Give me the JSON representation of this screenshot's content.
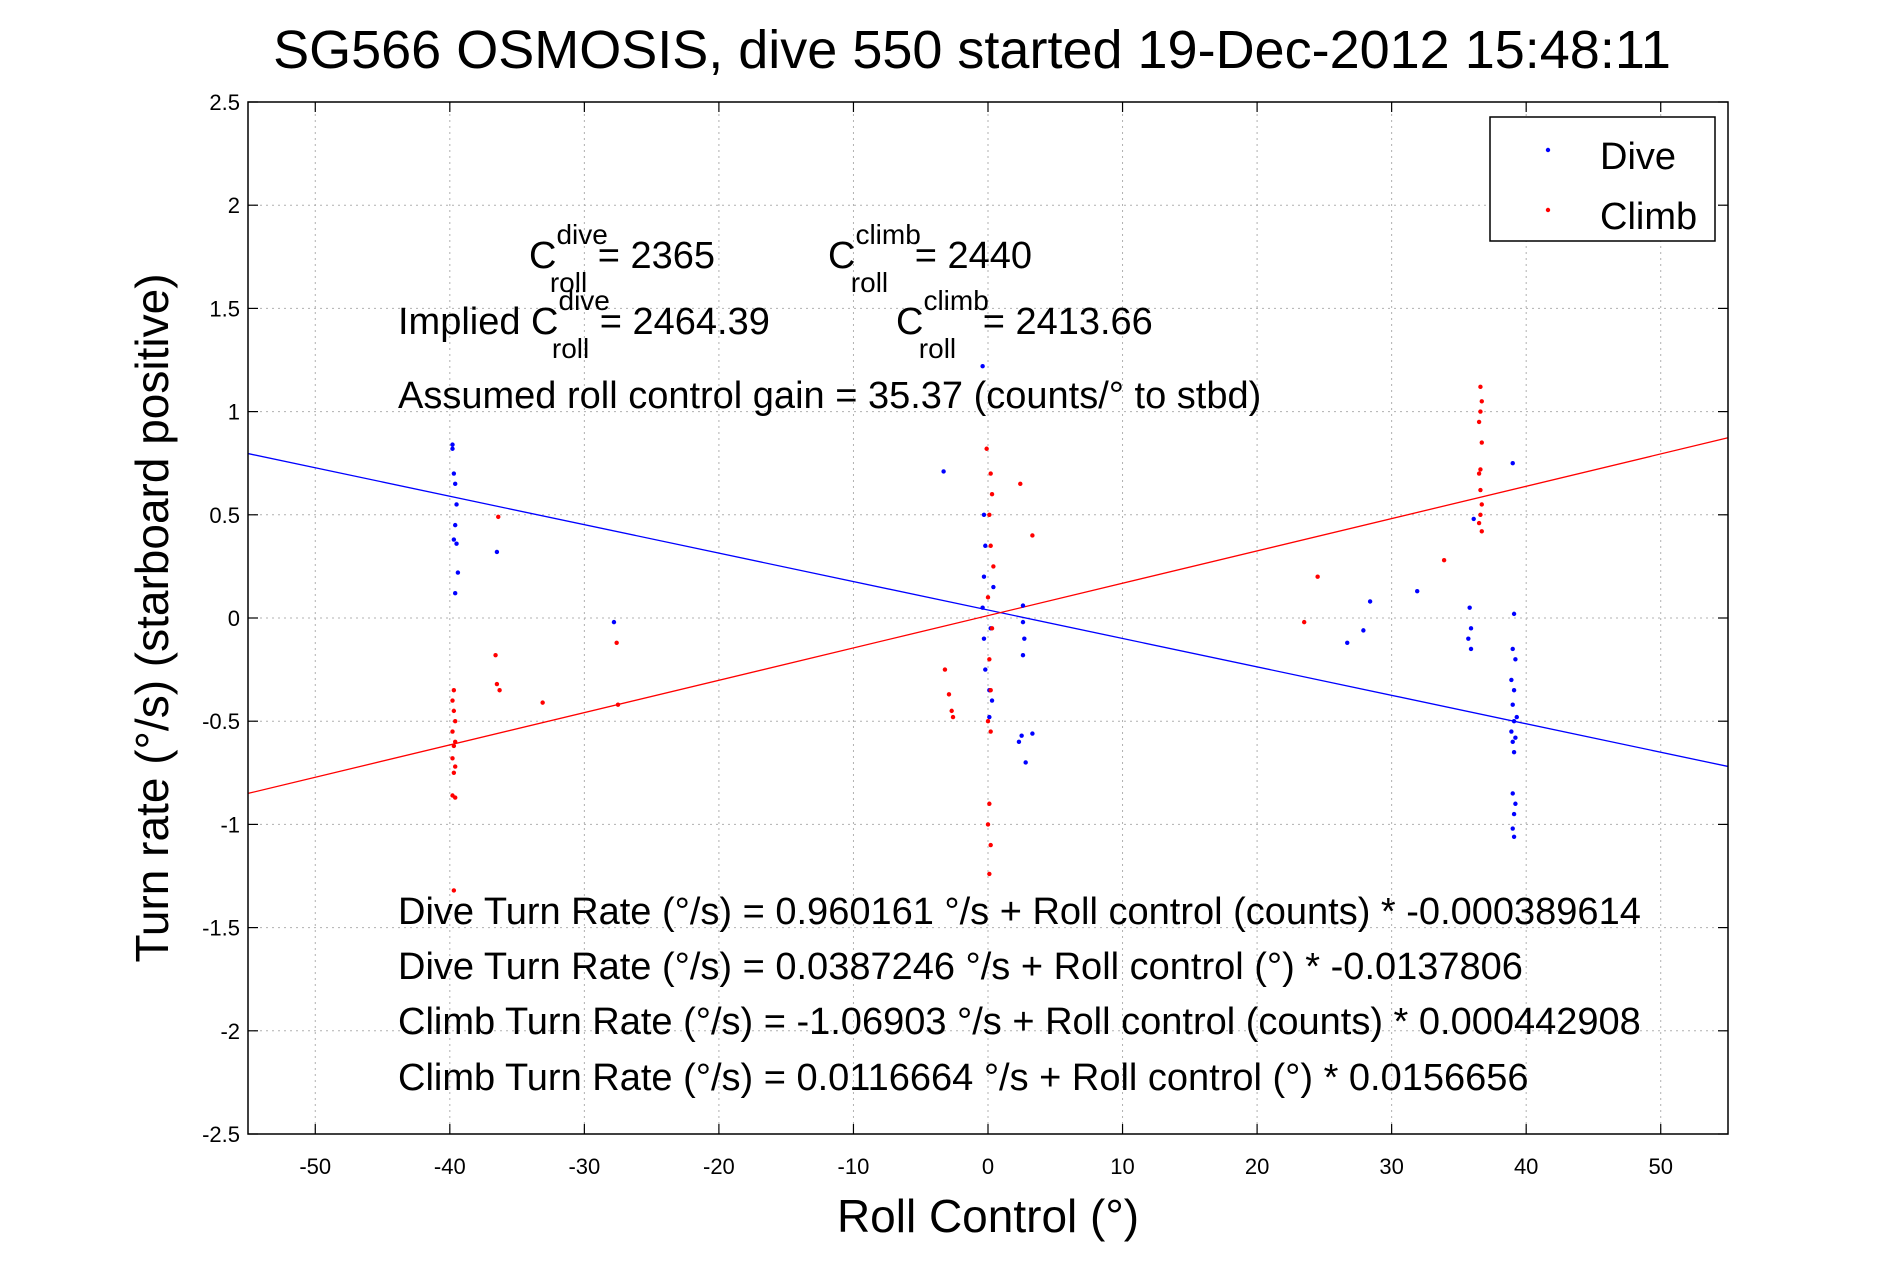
{
  "chart_data": {
    "type": "scatter",
    "title": "SG566 OSMOSIS, dive 550 started 19-Dec-2012 15:48:11",
    "xlabel": "Roll Control (°)",
    "ylabel": "Turn rate (°/s) (starboard positive)",
    "xlim": [
      -55,
      55
    ],
    "ylim": [
      -2.5,
      2.5
    ],
    "xticks": [
      "-50",
      "-40",
      "-30",
      "-20",
      "-10",
      "0",
      "10",
      "20",
      "30",
      "40",
      "50"
    ],
    "yticks": [
      "2.5",
      "2",
      "1.5",
      "1",
      "0.5",
      "0",
      "-0.5",
      "-1",
      "-1.5",
      "-2",
      "-2.5"
    ],
    "grid": true,
    "legend_position": "top-right",
    "colors": {
      "dive": "#0000ff",
      "climb": "#ff0000"
    },
    "series": [
      {
        "name": "Dive",
        "color": "#0000ff",
        "points": [
          [
            -39.8,
            0.84
          ],
          [
            -39.8,
            0.82
          ],
          [
            -39.7,
            0.7
          ],
          [
            -39.6,
            0.65
          ],
          [
            -39.5,
            0.55
          ],
          [
            -39.6,
            0.45
          ],
          [
            -39.7,
            0.38
          ],
          [
            -39.5,
            0.36
          ],
          [
            -39.4,
            0.22
          ],
          [
            -39.6,
            0.12
          ],
          [
            -36.5,
            0.32
          ],
          [
            -27.8,
            -0.02
          ],
          [
            -3.3,
            0.71
          ],
          [
            -0.4,
            1.22
          ],
          [
            -0.3,
            0.5
          ],
          [
            -0.2,
            0.35
          ],
          [
            -0.3,
            0.2
          ],
          [
            -0.4,
            0.05
          ],
          [
            -0.3,
            -0.1
          ],
          [
            -0.2,
            -0.25
          ],
          [
            0.1,
            -0.35
          ],
          [
            0.3,
            -0.4
          ],
          [
            0.1,
            -0.48
          ],
          [
            0.4,
            0.15
          ],
          [
            0.2,
            -0.05
          ],
          [
            2.6,
            0.06
          ],
          [
            2.6,
            -0.02
          ],
          [
            2.7,
            -0.1
          ],
          [
            2.6,
            -0.18
          ],
          [
            2.5,
            -0.57
          ],
          [
            2.8,
            -0.7
          ],
          [
            3.3,
            -0.56
          ],
          [
            2.3,
            -0.6
          ],
          [
            26.7,
            -0.12
          ],
          [
            27.9,
            -0.06
          ],
          [
            28.4,
            0.08
          ],
          [
            31.9,
            0.13
          ],
          [
            35.8,
            0.05
          ],
          [
            35.9,
            -0.05
          ],
          [
            35.7,
            -0.1
          ],
          [
            35.9,
            -0.15
          ],
          [
            36.1,
            0.48
          ],
          [
            39.0,
            0.75
          ],
          [
            39.1,
            0.02
          ],
          [
            39.0,
            -0.15
          ],
          [
            39.2,
            -0.2
          ],
          [
            38.9,
            -0.3
          ],
          [
            39.1,
            -0.35
          ],
          [
            39.0,
            -0.42
          ],
          [
            39.3,
            -0.48
          ],
          [
            39.1,
            -0.5
          ],
          [
            38.9,
            -0.55
          ],
          [
            39.2,
            -0.58
          ],
          [
            39.0,
            -0.6
          ],
          [
            39.1,
            -0.65
          ],
          [
            39.0,
            -0.85
          ],
          [
            39.2,
            -0.9
          ],
          [
            39.1,
            -0.95
          ],
          [
            39.0,
            -1.02
          ],
          [
            39.1,
            -1.06
          ]
        ]
      },
      {
        "name": "Climb",
        "color": "#ff0000",
        "points": [
          [
            -39.7,
            -0.35
          ],
          [
            -39.8,
            -0.4
          ],
          [
            -39.7,
            -0.45
          ],
          [
            -39.6,
            -0.5
          ],
          [
            -39.8,
            -0.55
          ],
          [
            -39.6,
            -0.6
          ],
          [
            -39.7,
            -0.62
          ],
          [
            -39.8,
            -0.68
          ],
          [
            -39.6,
            -0.72
          ],
          [
            -39.7,
            -0.75
          ],
          [
            -39.8,
            -0.86
          ],
          [
            -39.6,
            -0.87
          ],
          [
            -39.7,
            -1.32
          ],
          [
            -36.4,
            0.49
          ],
          [
            -36.6,
            -0.18
          ],
          [
            -36.5,
            -0.32
          ],
          [
            -36.3,
            -0.35
          ],
          [
            -33.1,
            -0.41
          ],
          [
            -27.6,
            -0.12
          ],
          [
            -27.5,
            -0.42
          ],
          [
            -3.2,
            -0.25
          ],
          [
            -2.9,
            -0.37
          ],
          [
            -2.7,
            -0.45
          ],
          [
            -2.6,
            -0.48
          ],
          [
            -0.1,
            0.82
          ],
          [
            0.2,
            0.7
          ],
          [
            0.3,
            0.6
          ],
          [
            0.1,
            0.5
          ],
          [
            0.2,
            0.35
          ],
          [
            0.4,
            0.25
          ],
          [
            0.0,
            0.1
          ],
          [
            0.3,
            -0.05
          ],
          [
            0.1,
            -0.2
          ],
          [
            0.2,
            -0.35
          ],
          [
            0.0,
            -0.5
          ],
          [
            0.2,
            -0.55
          ],
          [
            0.1,
            -0.9
          ],
          [
            0.0,
            -1.0
          ],
          [
            0.2,
            -1.1
          ],
          [
            0.1,
            -1.24
          ],
          [
            2.4,
            0.65
          ],
          [
            3.3,
            0.4
          ],
          [
            23.5,
            -0.02
          ],
          [
            24.5,
            0.2
          ],
          [
            33.9,
            0.28
          ],
          [
            36.6,
            1.12
          ],
          [
            36.7,
            1.05
          ],
          [
            36.6,
            1.0
          ],
          [
            36.5,
            0.95
          ],
          [
            36.7,
            0.85
          ],
          [
            36.6,
            0.72
          ],
          [
            36.5,
            0.7
          ],
          [
            36.6,
            0.62
          ],
          [
            36.7,
            0.55
          ],
          [
            36.6,
            0.5
          ],
          [
            36.5,
            0.46
          ],
          [
            36.7,
            0.42
          ]
        ]
      }
    ],
    "fit_lines": [
      {
        "series": "Dive",
        "intercept": 0.0387246,
        "slope": -0.0137806,
        "color": "#0000ff"
      },
      {
        "series": "Climb",
        "intercept": 0.0116664,
        "slope": 0.0156656,
        "color": "#ff0000"
      }
    ],
    "legend": [
      "Dive",
      "Climb"
    ]
  },
  "annotations": {
    "c_roll_dive": {
      "prefix": "C",
      "sup": "dive",
      "sub": "roll",
      "value": " = 2365"
    },
    "c_roll_climb": {
      "prefix": "C",
      "sup": "climb",
      "sub": "roll",
      "value": " = 2440"
    },
    "implied_c_roll_dive": {
      "prefix": "Implied C",
      "sup": "dive",
      "sub": "roll",
      "value": " = 2464.39"
    },
    "implied_c_roll_climb": {
      "prefix": "C",
      "sup": "climb",
      "sub": "roll",
      "value": " = 2413.66"
    },
    "gain": "Assumed roll control gain = 35.37 (counts/° to stbd)",
    "eq1": "Dive Turn Rate (°/s) = 0.960161 °/s + Roll control (counts) * -0.000389614",
    "eq2": "Dive Turn Rate (°/s) = 0.0387246 °/s + Roll control (°) * -0.0137806",
    "eq3": "Climb Turn Rate (°/s) = -1.06903 °/s + Roll control (counts) * 0.000442908",
    "eq4": "Climb Turn Rate (°/s) = 0.0116664 °/s + Roll control (°) * 0.0156656"
  }
}
